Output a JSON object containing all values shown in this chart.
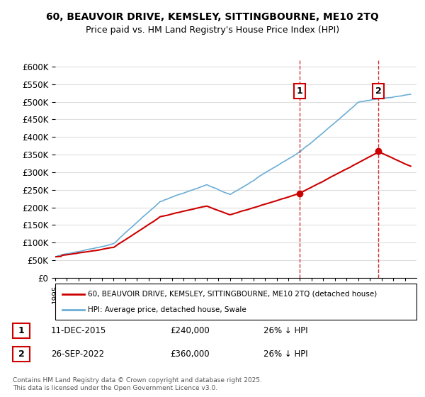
{
  "title": "60, BEAUVOIR DRIVE, KEMSLEY, SITTINGBOURNE, ME10 2TQ",
  "subtitle": "Price paid vs. HM Land Registry's House Price Index (HPI)",
  "legend_line1": "60, BEAUVOIR DRIVE, KEMSLEY, SITTINGBOURNE, ME10 2TQ (detached house)",
  "legend_line2": "HPI: Average price, detached house, Swale",
  "annotation1_label": "1",
  "annotation1_date": "11-DEC-2015",
  "annotation1_price": 240000,
  "annotation1_note": "26% ↓ HPI",
  "annotation2_label": "2",
  "annotation2_date": "26-SEP-2022",
  "annotation2_price": 360000,
  "annotation2_note": "26% ↓ HPI",
  "hpi_color": "#6baed6",
  "price_color": "#cc0000",
  "dashed_line_color": "#cc0000",
  "ylim": [
    0,
    620000
  ],
  "ytick_step": 50000,
  "footer": "Contains HM Land Registry data © Crown copyright and database right 2025.\nThis data is licensed under the Open Government Licence v3.0.",
  "background_color": "#ffffff",
  "grid_color": "#dddddd"
}
